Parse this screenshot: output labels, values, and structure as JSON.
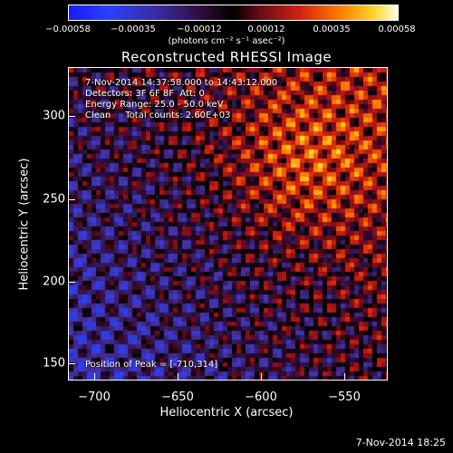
{
  "colorbar": {
    "ticks": [
      "−0.00058",
      "−0.00035",
      "−0.00012",
      "0.00012",
      "0.00035",
      "0.00058"
    ],
    "units": "(photons cm⁻² s⁻¹ asec⁻²)",
    "range": [
      -0.00058,
      0.00058
    ]
  },
  "title": "Reconstructed RHESSI Image",
  "info": {
    "line1": "7-Nov-2014 14:37:58.000 to 14:43:12.000",
    "line2": "Detectors: 3F 6F 8F  Att: 0",
    "line3": "Energy Range: 25.0 - 50.0 keV",
    "line4": "Clean     Total counts: 2.60E+03",
    "peak": "Position of Peak = [-710,314]"
  },
  "axes": {
    "xlabel": "Heliocentric X (arcsec)",
    "ylabel": "Heliocentric Y (arcsec)",
    "xticks": [
      "−700",
      "−650",
      "−600",
      "−550"
    ],
    "yticks": [
      "300",
      "250",
      "200",
      "150"
    ],
    "xrange": [
      -716,
      -526
    ],
    "yrange": [
      136,
      322
    ]
  },
  "footer_date": "7-Nov-2014 18:25",
  "colors": {
    "background": "#000000",
    "frame": "#ffffff"
  }
}
